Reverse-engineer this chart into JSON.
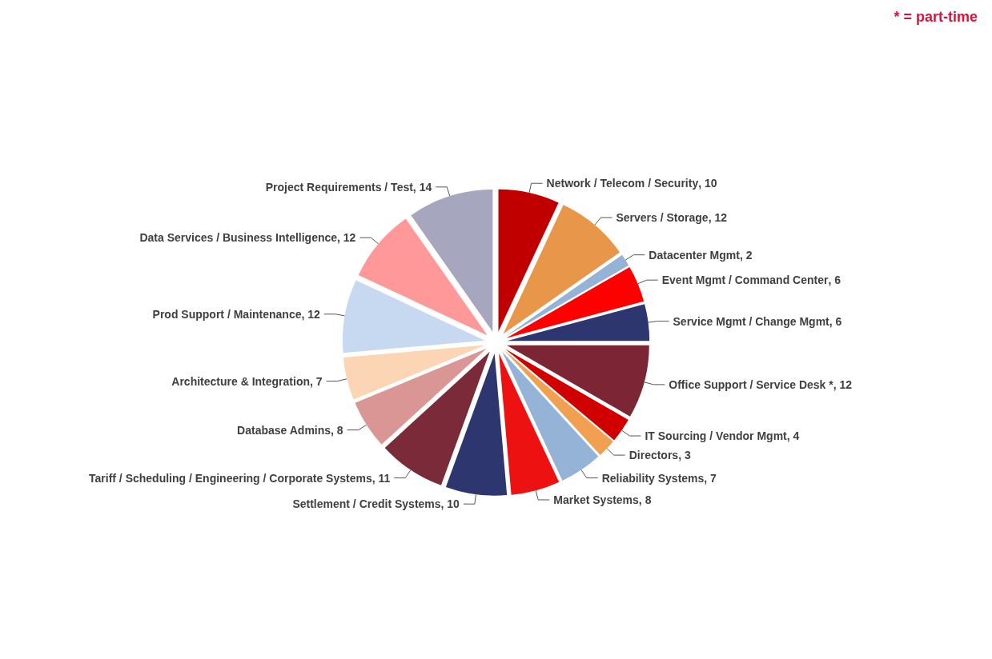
{
  "chart_data": {
    "type": "pie",
    "categories": [
      "Network / Telecom / Security",
      "Servers / Storage",
      "Datacenter Mgmt",
      "Event Mgmt / Command Center",
      "Service Mgmt / Change Mgmt",
      "Office Support / Service Desk *",
      "IT Sourcing / Vendor Mgmt",
      "Directors",
      "Reliability Systems",
      "Market Systems",
      "Settlement / Credit Systems",
      "Tariff / Scheduling / Engineering / Corporate Systems",
      "Database Admins",
      "Architecture & Integration",
      "Prod Support / Maintenance",
      "Data Services / Business Intelligence",
      "Project Requirements / Test"
    ],
    "values": [
      10,
      12,
      2,
      6,
      6,
      12,
      4,
      3,
      7,
      8,
      10,
      11,
      8,
      7,
      12,
      12,
      14
    ],
    "colors": [
      "#c00000",
      "#e8964a",
      "#95b3d7",
      "#ff0000",
      "#2e3670",
      "#7b2535",
      "#d00000",
      "#f0a050",
      "#95b3d7",
      "#ee1111",
      "#2e3670",
      "#7b2a3a",
      "#d99694",
      "#fcd5b4",
      "#c6d9f1",
      "#ff9999",
      "#a6a6bf"
    ],
    "value_labels": [
      ", 10",
      ", 12",
      ", 2",
      ", 6",
      ", 6",
      ", 12",
      ", 4",
      ", 3",
      ", 7",
      ", 8",
      ", 10",
      ", 11",
      ", 8",
      ", 7",
      ", 12",
      ", 12",
      ", 14"
    ],
    "annotations": [
      "* = part-time"
    ]
  }
}
